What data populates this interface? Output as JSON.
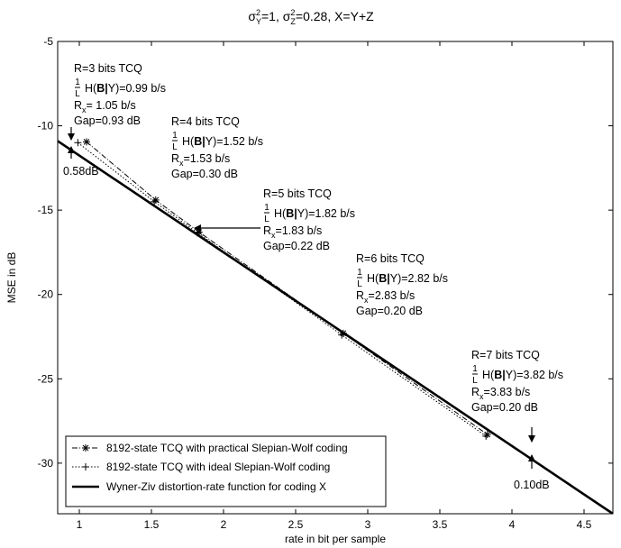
{
  "chart_data": {
    "type": "line",
    "title_parts": {
      "sy": "σ",
      "sy_sup": "2",
      "sy_sub": "Y",
      "sy_val": "=1, ",
      "sz": "σ",
      "sz_sup": "2",
      "sz_sub": "Z",
      "sz_val": "=0.28, X=Y+Z"
    },
    "xlabel": "rate in bit per sample",
    "ylabel": "MSE in dB",
    "xlim": [
      0.85,
      4.7
    ],
    "ylim": [
      -33,
      -5
    ],
    "xticks": [
      1,
      1.5,
      2,
      2.5,
      3,
      3.5,
      4,
      4.5
    ],
    "xtick_labels": [
      "1",
      "1.5",
      "2",
      "2.5",
      "3",
      "3.5",
      "4",
      "4.5"
    ],
    "yticks": [
      -5,
      -10,
      -15,
      -20,
      -25,
      -30
    ],
    "ytick_labels": [
      "-5",
      "-10",
      "-15",
      "-20",
      "-25",
      "-30"
    ],
    "grid": false,
    "legend_position": "bottom-left",
    "series": [
      {
        "name": "8192-state TCQ with practical Slepian-Wolf coding",
        "style": "dashdot-star",
        "x": [
          1.05,
          1.53,
          1.83,
          2.83,
          3.83
        ],
        "y": [
          -10.95,
          -14.4,
          -16.3,
          -22.3,
          -28.3
        ]
      },
      {
        "name": "8192-state TCQ with ideal Slepian-Wolf coding",
        "style": "dotted-plus",
        "x": [
          0.99,
          1.52,
          1.82,
          2.82,
          3.82
        ],
        "y": [
          -11.0,
          -14.5,
          -16.35,
          -22.4,
          -28.4
        ]
      },
      {
        "name": "Wyner-Ziv distortion-rate function for coding X",
        "style": "solid-bold",
        "x": [
          0.85,
          4.7
        ],
        "y": [
          -10.9,
          -33.0
        ]
      }
    ],
    "annotations": [
      {
        "lines": [
          "R=3 bits TCQ",
          "H(B|Y)=0.99 b/s",
          "R_x= 1.05 b/s",
          "Gap=0.93 dB"
        ]
      },
      {
        "lines": [
          "R=4 bits TCQ",
          "H(B|Y)=1.52 b/s",
          "R_x=1.53 b/s",
          "Gap=0.30 dB"
        ]
      },
      {
        "lines": [
          "R=5 bits TCQ",
          "H(B|Y)=1.82 b/s",
          "R_x=1.83 b/s",
          "Gap=0.22 dB"
        ]
      },
      {
        "lines": [
          "R=6 bits TCQ",
          "H(B|Y)=2.82 b/s",
          "R_x=2.83 b/s",
          "Gap=0.20 dB"
        ]
      },
      {
        "lines": [
          "R=7 bits TCQ",
          "H(B|Y)=3.82 b/s",
          "R_x=3.83 b/s",
          "Gap=0.20 dB"
        ]
      }
    ],
    "gap_labels": [
      "0.58dB",
      "0.10dB"
    ]
  }
}
